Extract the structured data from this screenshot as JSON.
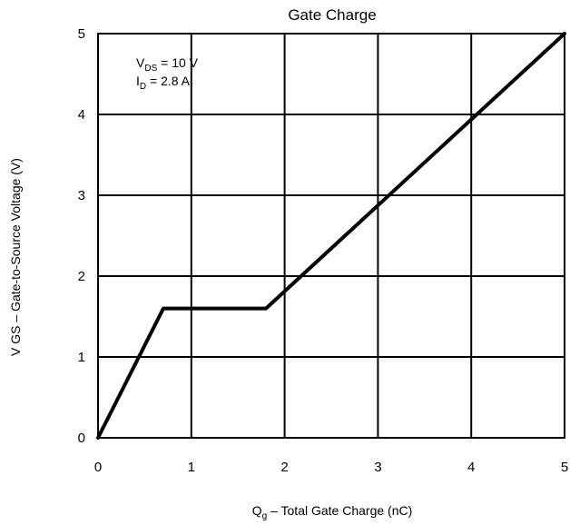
{
  "chart_data": {
    "type": "line",
    "title": "Gate Charge",
    "xlabel": "Q",
    "xlabel_sub": "g",
    "xlabel_rest": " – Total Gate Charge (nC)",
    "ylabel": "V GS – Gate-to-Source Voltage (V)",
    "xlim": [
      0,
      5
    ],
    "ylim": [
      0,
      5
    ],
    "xticks": [
      "0",
      "1",
      "2",
      "3",
      "4",
      "5"
    ],
    "yticks": [
      "0",
      "1",
      "2",
      "3",
      "4",
      "5"
    ],
    "grid": true,
    "annotations": [
      {
        "main": "V",
        "sub": "DS",
        "rest": " = 10 V"
      },
      {
        "main": "I",
        "sub": "D",
        "rest": " = 2.8 A"
      }
    ],
    "series": [
      {
        "x": [
          0,
          0.7,
          1.8,
          5.0
        ],
        "y": [
          0,
          1.6,
          1.6,
          5.0
        ]
      }
    ]
  }
}
